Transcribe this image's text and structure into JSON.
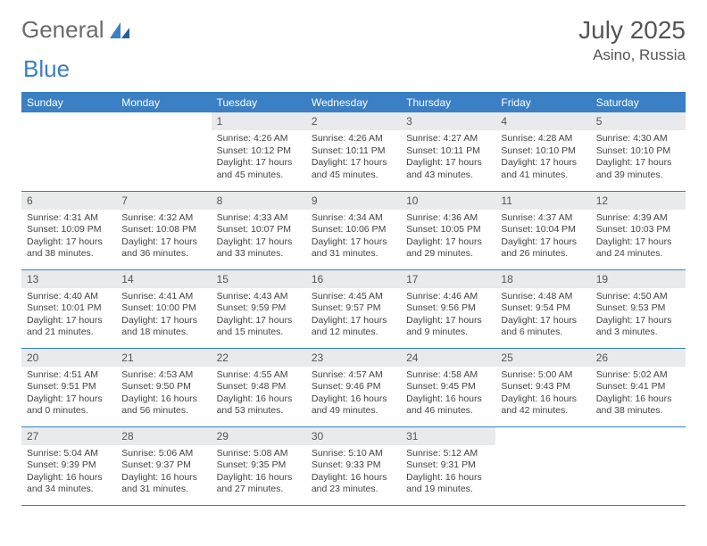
{
  "brand": {
    "part1": "General",
    "part2": "Blue"
  },
  "title": "July 2025",
  "location": "Asino, Russia",
  "colors": {
    "header_bg": "#3b7fc4",
    "header_text": "#ffffff",
    "daynum_bg": "#e8eaec",
    "body_text": "#444444",
    "rule": "#3b7fc4"
  },
  "typography": {
    "title_fontsize": 28,
    "location_fontsize": 17,
    "dayheader_fontsize": 12,
    "body_fontsize": 10.5
  },
  "day_headers": [
    "Sunday",
    "Monday",
    "Tuesday",
    "Wednesday",
    "Thursday",
    "Friday",
    "Saturday"
  ],
  "weeks": [
    [
      null,
      null,
      {
        "n": "1",
        "sunrise": "4:26 AM",
        "sunset": "10:12 PM",
        "daylight": "17 hours and 45 minutes."
      },
      {
        "n": "2",
        "sunrise": "4:26 AM",
        "sunset": "10:11 PM",
        "daylight": "17 hours and 45 minutes."
      },
      {
        "n": "3",
        "sunrise": "4:27 AM",
        "sunset": "10:11 PM",
        "daylight": "17 hours and 43 minutes."
      },
      {
        "n": "4",
        "sunrise": "4:28 AM",
        "sunset": "10:10 PM",
        "daylight": "17 hours and 41 minutes."
      },
      {
        "n": "5",
        "sunrise": "4:30 AM",
        "sunset": "10:10 PM",
        "daylight": "17 hours and 39 minutes."
      }
    ],
    [
      {
        "n": "6",
        "sunrise": "4:31 AM",
        "sunset": "10:09 PM",
        "daylight": "17 hours and 38 minutes."
      },
      {
        "n": "7",
        "sunrise": "4:32 AM",
        "sunset": "10:08 PM",
        "daylight": "17 hours and 36 minutes."
      },
      {
        "n": "8",
        "sunrise": "4:33 AM",
        "sunset": "10:07 PM",
        "daylight": "17 hours and 33 minutes."
      },
      {
        "n": "9",
        "sunrise": "4:34 AM",
        "sunset": "10:06 PM",
        "daylight": "17 hours and 31 minutes."
      },
      {
        "n": "10",
        "sunrise": "4:36 AM",
        "sunset": "10:05 PM",
        "daylight": "17 hours and 29 minutes."
      },
      {
        "n": "11",
        "sunrise": "4:37 AM",
        "sunset": "10:04 PM",
        "daylight": "17 hours and 26 minutes."
      },
      {
        "n": "12",
        "sunrise": "4:39 AM",
        "sunset": "10:03 PM",
        "daylight": "17 hours and 24 minutes."
      }
    ],
    [
      {
        "n": "13",
        "sunrise": "4:40 AM",
        "sunset": "10:01 PM",
        "daylight": "17 hours and 21 minutes."
      },
      {
        "n": "14",
        "sunrise": "4:41 AM",
        "sunset": "10:00 PM",
        "daylight": "17 hours and 18 minutes."
      },
      {
        "n": "15",
        "sunrise": "4:43 AM",
        "sunset": "9:59 PM",
        "daylight": "17 hours and 15 minutes."
      },
      {
        "n": "16",
        "sunrise": "4:45 AM",
        "sunset": "9:57 PM",
        "daylight": "17 hours and 12 minutes."
      },
      {
        "n": "17",
        "sunrise": "4:46 AM",
        "sunset": "9:56 PM",
        "daylight": "17 hours and 9 minutes."
      },
      {
        "n": "18",
        "sunrise": "4:48 AM",
        "sunset": "9:54 PM",
        "daylight": "17 hours and 6 minutes."
      },
      {
        "n": "19",
        "sunrise": "4:50 AM",
        "sunset": "9:53 PM",
        "daylight": "17 hours and 3 minutes."
      }
    ],
    [
      {
        "n": "20",
        "sunrise": "4:51 AM",
        "sunset": "9:51 PM",
        "daylight": "17 hours and 0 minutes."
      },
      {
        "n": "21",
        "sunrise": "4:53 AM",
        "sunset": "9:50 PM",
        "daylight": "16 hours and 56 minutes."
      },
      {
        "n": "22",
        "sunrise": "4:55 AM",
        "sunset": "9:48 PM",
        "daylight": "16 hours and 53 minutes."
      },
      {
        "n": "23",
        "sunrise": "4:57 AM",
        "sunset": "9:46 PM",
        "daylight": "16 hours and 49 minutes."
      },
      {
        "n": "24",
        "sunrise": "4:58 AM",
        "sunset": "9:45 PM",
        "daylight": "16 hours and 46 minutes."
      },
      {
        "n": "25",
        "sunrise": "5:00 AM",
        "sunset": "9:43 PM",
        "daylight": "16 hours and 42 minutes."
      },
      {
        "n": "26",
        "sunrise": "5:02 AM",
        "sunset": "9:41 PM",
        "daylight": "16 hours and 38 minutes."
      }
    ],
    [
      {
        "n": "27",
        "sunrise": "5:04 AM",
        "sunset": "9:39 PM",
        "daylight": "16 hours and 34 minutes."
      },
      {
        "n": "28",
        "sunrise": "5:06 AM",
        "sunset": "9:37 PM",
        "daylight": "16 hours and 31 minutes."
      },
      {
        "n": "29",
        "sunrise": "5:08 AM",
        "sunset": "9:35 PM",
        "daylight": "16 hours and 27 minutes."
      },
      {
        "n": "30",
        "sunrise": "5:10 AM",
        "sunset": "9:33 PM",
        "daylight": "16 hours and 23 minutes."
      },
      {
        "n": "31",
        "sunrise": "5:12 AM",
        "sunset": "9:31 PM",
        "daylight": "16 hours and 19 minutes."
      },
      null,
      null
    ]
  ],
  "labels": {
    "sunrise": "Sunrise:",
    "sunset": "Sunset:",
    "daylight": "Daylight:"
  }
}
